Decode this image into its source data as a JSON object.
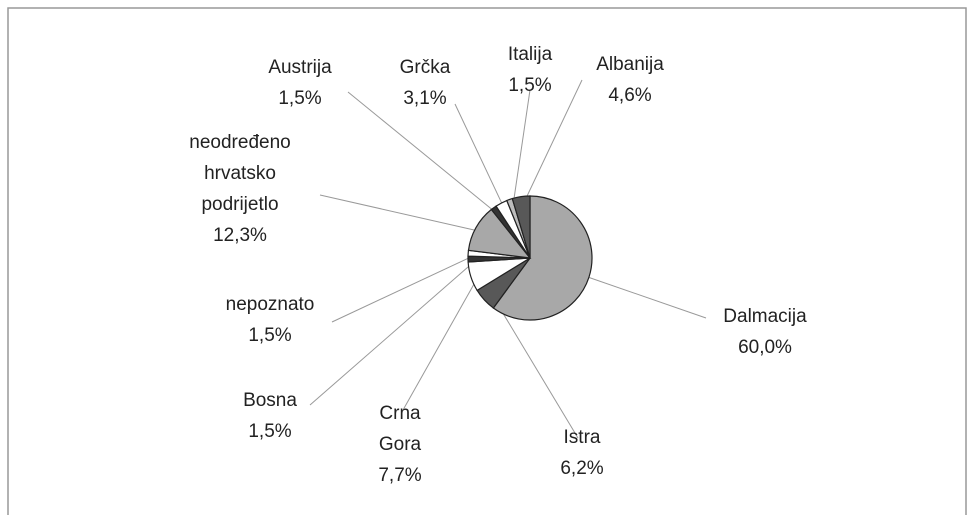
{
  "chart_data": {
    "type": "pie",
    "categories": [
      "Dalmacija",
      "Istra",
      "Crna Gora",
      "Bosna",
      "nepoznato",
      "neodređeno hrvatsko podrijetlo",
      "Austrija",
      "Grčka",
      "Italija",
      "Albanija"
    ],
    "values": [
      60.0,
      6.2,
      7.7,
      1.5,
      1.5,
      12.3,
      1.5,
      3.1,
      1.5,
      4.6
    ],
    "value_labels": [
      "60,0%",
      "6,2%",
      "7,7%",
      "1,5%",
      "1,5%",
      "12,3%",
      "1,5%",
      "3,1%",
      "1,5%",
      "4,6%"
    ],
    "colors": [
      "#a8a8a8",
      "#585858",
      "#ffffff",
      "#333333",
      "#ffffff",
      "#a8a8a8",
      "#333333",
      "#ffffff",
      "#bdbdbd",
      "#585858"
    ]
  }
}
